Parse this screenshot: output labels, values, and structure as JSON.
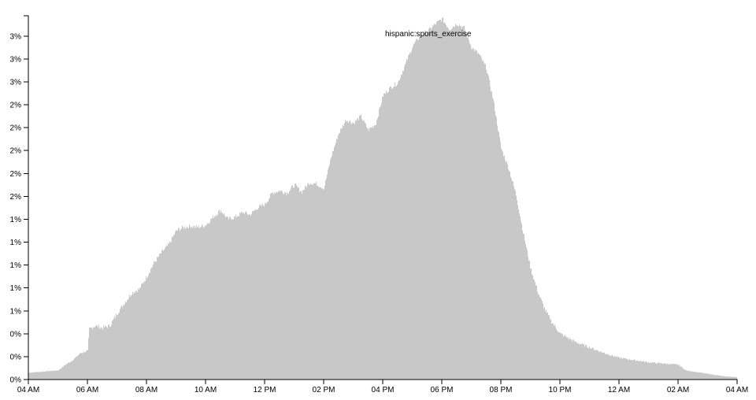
{
  "chart_data": {
    "type": "area",
    "color": "#c8c8c8",
    "x_unit": "time of day (hour)",
    "ylim": [
      0,
      3.15
    ],
    "y_tick_values": [
      0,
      0.2,
      0.4,
      0.6,
      0.8,
      1.0,
      1.2,
      1.4,
      1.6,
      1.8,
      2.0,
      2.2,
      2.4,
      2.6,
      2.8,
      3.0
    ],
    "y_tick_labels": [
      "0%",
      "0%",
      "0%",
      "1%",
      "1%",
      "1%",
      "1%",
      "1%",
      "2%",
      "2%",
      "2%",
      "2%",
      "2%",
      "3%",
      "3%",
      "3%"
    ],
    "x_tick_values": [
      4,
      6,
      8,
      10,
      12,
      14,
      16,
      18,
      20,
      22,
      24,
      26,
      28
    ],
    "x_tick_labels": [
      "04 AM",
      "06 AM",
      "08 AM",
      "10 AM",
      "12 PM",
      "02 PM",
      "04 PM",
      "06 PM",
      "08 PM",
      "10 PM",
      "12 AM",
      "02 AM",
      "04 AM"
    ],
    "annotation": "hispanic:sports_exercise",
    "x": [
      4.0,
      4.5,
      5.0,
      5.25,
      5.5,
      5.75,
      6.0,
      6.05,
      6.25,
      6.5,
      6.75,
      7.0,
      7.25,
      7.5,
      7.75,
      8.0,
      8.25,
      8.5,
      8.75,
      9.0,
      9.25,
      9.5,
      9.75,
      10.0,
      10.25,
      10.5,
      10.75,
      11.0,
      11.25,
      11.5,
      11.75,
      12.0,
      12.25,
      12.5,
      12.75,
      13.0,
      13.25,
      13.5,
      13.75,
      14.0,
      14.25,
      14.5,
      14.75,
      15.0,
      15.25,
      15.5,
      15.75,
      16.0,
      16.25,
      16.5,
      16.75,
      17.0,
      17.25,
      17.5,
      17.75,
      18.0,
      18.25,
      18.5,
      18.75,
      19.0,
      19.25,
      19.5,
      19.75,
      20.0,
      20.25,
      20.5,
      20.75,
      21.0,
      21.25,
      21.5,
      21.75,
      22.0,
      22.5,
      23.0,
      23.5,
      24.0,
      24.5,
      25.0,
      25.5,
      26.0,
      26.25,
      26.5,
      27.0,
      27.5,
      28.0
    ],
    "values": [
      0.06,
      0.07,
      0.08,
      0.13,
      0.17,
      0.23,
      0.25,
      0.44,
      0.47,
      0.45,
      0.47,
      0.58,
      0.67,
      0.76,
      0.79,
      0.9,
      1.02,
      1.11,
      1.18,
      1.3,
      1.33,
      1.34,
      1.33,
      1.35,
      1.42,
      1.48,
      1.4,
      1.42,
      1.46,
      1.44,
      1.5,
      1.53,
      1.63,
      1.65,
      1.63,
      1.7,
      1.64,
      1.72,
      1.71,
      1.67,
      1.95,
      2.15,
      2.27,
      2.24,
      2.3,
      2.18,
      2.23,
      2.48,
      2.55,
      2.59,
      2.75,
      2.91,
      3.0,
      3.04,
      3.1,
      3.15,
      3.06,
      3.11,
      3.07,
      2.9,
      2.84,
      2.72,
      2.42,
      2.02,
      1.85,
      1.62,
      1.28,
      0.97,
      0.76,
      0.6,
      0.49,
      0.4,
      0.33,
      0.28,
      0.23,
      0.19,
      0.17,
      0.15,
      0.14,
      0.13,
      0.08,
      0.07,
      0.05,
      0.03,
      0.02
    ]
  }
}
